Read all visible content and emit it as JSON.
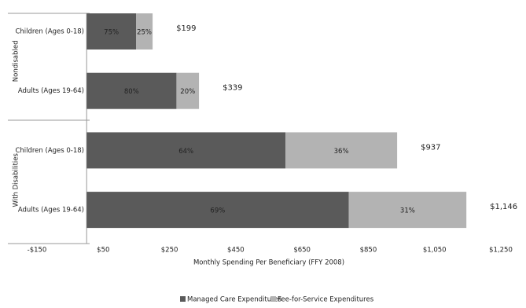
{
  "chart_data": {
    "type": "stacked-bar-horizontal",
    "x_label": "Monthly Spending Per Beneficiary (FFY 2008)",
    "groups": [
      {
        "name": "Nondisabled",
        "categories": [
          "Children (Ages 0-18)",
          "Adults (Ages 19-64)"
        ]
      },
      {
        "name": "With Disabilities",
        "categories": [
          "Children (Ages 0-18)",
          "Adults (Ages 19-64)"
        ]
      }
    ],
    "series": [
      {
        "name": "Managed Care Expenditures",
        "color": "#5a5a5a",
        "values": [
          149,
          271,
          600,
          791
        ],
        "share_labels": [
          "75%",
          "80%",
          "64%",
          "69%"
        ]
      },
      {
        "name": "Fee-for-Service Expenditures",
        "color": "#b3b3b3",
        "values": [
          50,
          68,
          337,
          355
        ],
        "share_labels": [
          "25%",
          "20%",
          "36%",
          "31%"
        ]
      }
    ],
    "totals": [
      {
        "value": 199,
        "label": "$199"
      },
      {
        "value": 339,
        "label": "$339"
      },
      {
        "value": 937,
        "label": "$937"
      },
      {
        "value": 1146,
        "label": "$1,146"
      }
    ],
    "xlim": [
      -150,
      1250
    ],
    "xticks": [
      {
        "value": -150,
        "label": "-$150"
      },
      {
        "value": 50,
        "label": "$50"
      },
      {
        "value": 250,
        "label": "$250"
      },
      {
        "value": 450,
        "label": "$450"
      },
      {
        "value": 650,
        "label": "$650"
      },
      {
        "value": 850,
        "label": "$850"
      },
      {
        "value": 1050,
        "label": "$1,050"
      },
      {
        "value": 1250,
        "label": "$1,250"
      }
    ]
  }
}
